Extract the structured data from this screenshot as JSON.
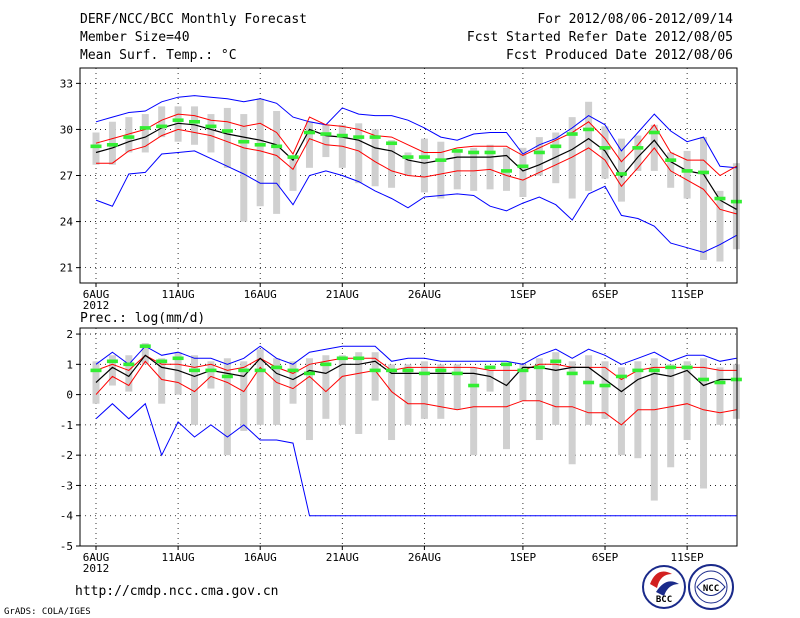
{
  "header": {
    "title": "DERF/NCC/BCC Monthly Forecast",
    "member_size": "Member Size=40",
    "variable_top": "Mean Surf. Temp.: °C",
    "period": "For 2012/08/06-2012/09/14",
    "started": "Fcst Started Refer Date 2012/08/05",
    "produced": "Fcst Produced Date 2012/08/06"
  },
  "footer": {
    "url": "http://cmdp.ncc.cma.gov.cn",
    "grads": "GrADS: COLA/IGES",
    "logo_bcc": "BCC",
    "logo_ncc": "NCC"
  },
  "colors": {
    "envelope": "#0000ff",
    "spread": "#ff0000",
    "mean": "#000000",
    "median": "#33ee33",
    "box": "#d0d0d0"
  },
  "chart_data": [
    {
      "type": "box-plume",
      "title": "Mean Surf. Temp.: °C",
      "days": 40,
      "ylim": [
        20,
        34
      ],
      "yticks": [
        21,
        24,
        27,
        30,
        33
      ],
      "xticks": [
        {
          "day": 1,
          "label": "6AUG",
          "sub": "2012"
        },
        {
          "day": 6,
          "label": "11AUG"
        },
        {
          "day": 11,
          "label": "16AUG"
        },
        {
          "day": 16,
          "label": "21AUG"
        },
        {
          "day": 21,
          "label": "26AUG"
        },
        {
          "day": 27,
          "label": "1SEP"
        },
        {
          "day": 32,
          "label": "6SEP"
        },
        {
          "day": 37,
          "label": "11SEP"
        }
      ],
      "series": [
        {
          "name": "max",
          "values": [
            30.5,
            30.8,
            31.1,
            31.2,
            31.8,
            32.1,
            32.2,
            32.1,
            32.0,
            31.8,
            32.0,
            31.7,
            30.8,
            30.5,
            30.3,
            31.4,
            31.0,
            30.9,
            30.9,
            30.6,
            30.1,
            29.5,
            29.3,
            29.7,
            29.8,
            29.8,
            28.4,
            29.0,
            29.4,
            30.1,
            30.9,
            30.3,
            28.6,
            29.8,
            31.0,
            29.9,
            29.2,
            29.5,
            27.6,
            27.5
          ]
        },
        {
          "name": "spread_high",
          "values": [
            29.1,
            29.4,
            29.7,
            30.0,
            30.6,
            31.0,
            30.9,
            30.6,
            30.5,
            30.2,
            30.4,
            29.8,
            28.4,
            30.8,
            30.3,
            30.2,
            30.0,
            29.6,
            29.5,
            29.0,
            28.5,
            28.5,
            28.8,
            28.9,
            28.9,
            28.9,
            28.3,
            28.8,
            29.3,
            29.8,
            30.5,
            29.4,
            27.9,
            29.0,
            30.3,
            28.5,
            28.0,
            28.0,
            27.0,
            27.6
          ]
        },
        {
          "name": "mean",
          "values": [
            28.5,
            28.8,
            29.2,
            29.5,
            30.1,
            30.4,
            30.3,
            30.0,
            29.7,
            29.5,
            29.3,
            29.0,
            28.0,
            30.0,
            29.6,
            29.5,
            29.3,
            28.8,
            28.6,
            28.0,
            27.8,
            28.0,
            28.2,
            28.2,
            28.2,
            28.3,
            27.3,
            27.7,
            28.2,
            28.7,
            29.4,
            28.6,
            26.9,
            28.2,
            29.3,
            27.9,
            27.3,
            27.1,
            25.4,
            24.8
          ]
        },
        {
          "name": "spread_low",
          "values": [
            27.8,
            27.8,
            28.6,
            28.9,
            29.6,
            30.0,
            29.8,
            29.6,
            29.2,
            28.8,
            28.6,
            28.3,
            27.4,
            29.4,
            29.0,
            28.9,
            28.6,
            27.9,
            27.3,
            27.0,
            26.9,
            27.1,
            27.3,
            27.3,
            27.4,
            27.0,
            26.7,
            27.2,
            27.7,
            28.2,
            28.8,
            28.0,
            26.3,
            27.5,
            28.8,
            27.3,
            26.7,
            26.1,
            24.8,
            24.5
          ]
        },
        {
          "name": "min",
          "values": [
            25.4,
            25.0,
            27.1,
            27.2,
            28.4,
            28.5,
            28.6,
            28.1,
            27.6,
            27.1,
            26.5,
            26.5,
            25.1,
            27.0,
            27.3,
            27.0,
            26.6,
            26.0,
            25.5,
            24.9,
            25.6,
            25.7,
            25.8,
            25.7,
            25.0,
            24.7,
            25.2,
            25.6,
            25.1,
            24.1,
            25.8,
            26.3,
            24.4,
            24.2,
            23.7,
            22.6,
            22.3,
            22.0,
            22.5,
            23.1
          ]
        },
        {
          "name": "median",
          "values": [
            28.9,
            29.0,
            29.5,
            30.1,
            30.2,
            30.6,
            30.5,
            30.2,
            29.9,
            29.2,
            29.0,
            28.9,
            28.2,
            29.8,
            29.7,
            29.6,
            29.5,
            29.5,
            29.1,
            28.2,
            28.2,
            28.0,
            28.6,
            28.5,
            28.5,
            27.3,
            27.6,
            28.5,
            28.9,
            29.7,
            30.0,
            28.8,
            27.1,
            28.8,
            29.8,
            28.0,
            27.3,
            27.2,
            25.5,
            25.3
          ]
        }
      ],
      "boxes": {
        "low": [
          27.7,
          27.7,
          28.5,
          28.5,
          29.5,
          29.2,
          29.0,
          28.5,
          27.5,
          24.0,
          25.0,
          24.5,
          26.0,
          27.5,
          28.2,
          27.5,
          26.5,
          26.3,
          26.2,
          27.0,
          25.9,
          25.5,
          26.1,
          26.0,
          26.1,
          26.0,
          25.6,
          27.0,
          26.5,
          25.5,
          26.0,
          26.8,
          25.3,
          27.3,
          27.3,
          26.2,
          25.5,
          21.5,
          21.4,
          22.2
        ],
        "high": [
          29.8,
          30.5,
          30.8,
          31.0,
          31.5,
          31.5,
          31.5,
          31.0,
          31.4,
          31.0,
          32.0,
          31.2,
          28.2,
          30.5,
          30.3,
          30.3,
          30.4,
          30.0,
          29.3,
          28.5,
          29.4,
          29.2,
          28.6,
          28.8,
          29.0,
          28.8,
          28.8,
          29.5,
          29.8,
          30.8,
          31.8,
          30.2,
          29.4,
          29.6,
          30.3,
          28.5,
          28.6,
          29.5,
          26.0,
          27.8
        ]
      }
    },
    {
      "type": "box-plume",
      "title": "Prec.: log(mm/d)",
      "days": 40,
      "ylim": [
        -5,
        2.2
      ],
      "yticks": [
        -5,
        -4,
        -3,
        -2,
        -1,
        0,
        1,
        2
      ],
      "xticks": [
        {
          "day": 1,
          "label": "6AUG",
          "sub": "2012"
        },
        {
          "day": 6,
          "label": "11AUG"
        },
        {
          "day": 11,
          "label": "16AUG"
        },
        {
          "day": 16,
          "label": "21AUG"
        },
        {
          "day": 21,
          "label": "26AUG"
        },
        {
          "day": 27,
          "label": "1SEP"
        },
        {
          "day": 32,
          "label": "6SEP"
        },
        {
          "day": 37,
          "label": "11SEP"
        }
      ],
      "series": [
        {
          "name": "max",
          "values": [
            1.0,
            1.4,
            1.0,
            1.6,
            1.3,
            1.4,
            1.2,
            1.2,
            1.0,
            1.2,
            1.6,
            1.2,
            1.0,
            1.4,
            1.5,
            1.6,
            1.6,
            1.6,
            1.1,
            1.2,
            1.2,
            1.1,
            1.1,
            1.1,
            1.1,
            1.1,
            1.0,
            1.3,
            1.5,
            1.2,
            1.5,
            1.3,
            1.0,
            1.2,
            1.4,
            1.1,
            1.3,
            1.3,
            1.1,
            1.2
          ]
        },
        {
          "name": "spread_high",
          "values": [
            0.8,
            1.0,
            0.8,
            1.3,
            1.0,
            1.0,
            0.9,
            1.0,
            0.8,
            0.9,
            1.2,
            0.9,
            0.7,
            1.0,
            1.1,
            1.2,
            1.2,
            1.2,
            0.8,
            0.9,
            0.9,
            0.9,
            0.9,
            0.9,
            0.8,
            0.8,
            0.8,
            1.0,
            1.0,
            0.9,
            0.9,
            0.9,
            0.5,
            0.8,
            0.9,
            0.9,
            0.9,
            0.9,
            0.8,
            0.8
          ]
        },
        {
          "name": "mean",
          "values": [
            0.4,
            0.9,
            0.6,
            1.3,
            0.9,
            0.8,
            0.6,
            0.8,
            0.7,
            0.6,
            1.2,
            0.7,
            0.5,
            0.8,
            0.7,
            1.0,
            1.0,
            1.1,
            0.7,
            0.7,
            0.7,
            0.7,
            0.7,
            0.7,
            0.6,
            0.3,
            0.9,
            0.9,
            0.8,
            0.9,
            0.9,
            0.5,
            0.1,
            0.5,
            0.7,
            0.6,
            0.8,
            0.3,
            0.5,
            0.5
          ]
        },
        {
          "name": "spread_low",
          "values": [
            0.0,
            0.6,
            0.3,
            1.1,
            0.5,
            0.4,
            0.1,
            0.6,
            0.4,
            0.1,
            0.9,
            0.4,
            0.2,
            0.6,
            0.1,
            0.6,
            0.7,
            0.8,
            0.1,
            -0.3,
            -0.3,
            -0.4,
            -0.5,
            -0.4,
            -0.4,
            -0.4,
            -0.2,
            -0.2,
            -0.4,
            -0.4,
            -0.6,
            -0.6,
            -1.0,
            -0.5,
            -0.5,
            -0.4,
            -0.3,
            -0.5,
            -0.6,
            -0.5
          ]
        },
        {
          "name": "min",
          "values": [
            -0.8,
            -0.3,
            -0.8,
            -0.3,
            -2.0,
            -0.9,
            -1.4,
            -1.0,
            -1.4,
            -1.0,
            -1.5,
            -1.5,
            -1.6,
            -4.0,
            -4.0,
            -4.0,
            -4.0,
            -4.0,
            -4.0,
            -4.0,
            -4.0,
            -4.0,
            -4.0,
            -4.0,
            -4.0,
            -4.0,
            -4.0,
            -4.0,
            -4.0,
            -4.0,
            -4.0,
            -4.0,
            -4.0,
            -4.0,
            -4.0,
            -4.0,
            -4.0,
            -4.0,
            -4.0,
            -4.0
          ]
        },
        {
          "name": "median",
          "values": [
            0.8,
            1.1,
            1.0,
            1.6,
            1.1,
            1.2,
            0.8,
            0.8,
            0.6,
            0.8,
            0.8,
            0.9,
            0.8,
            0.7,
            1.0,
            1.2,
            1.2,
            0.8,
            0.8,
            0.8,
            0.7,
            0.8,
            0.7,
            0.3,
            0.9,
            1.0,
            0.8,
            0.9,
            1.1,
            0.7,
            0.4,
            0.3,
            0.6,
            0.8,
            0.8,
            0.9,
            0.9,
            0.5,
            0.4,
            0.5
          ]
        }
      ],
      "boxes": {
        "low": [
          -0.3,
          0.3,
          0.1,
          1.0,
          -0.3,
          0.0,
          -1.0,
          0.2,
          -2.0,
          -1.2,
          -1.0,
          -1.0,
          -0.3,
          -1.5,
          -0.8,
          -1.0,
          -1.3,
          -0.2,
          -1.5,
          -1.0,
          -0.8,
          -0.8,
          -0.5,
          -2.0,
          0.1,
          -1.8,
          -0.2,
          -1.5,
          -1.0,
          -2.3,
          -1.0,
          -0.8,
          -2.0,
          -2.1,
          -3.5,
          -2.4,
          -1.5,
          -3.1,
          -1.0,
          -0.8
        ],
        "high": [
          1.1,
          1.3,
          1.3,
          1.7,
          1.2,
          1.4,
          1.3,
          1.1,
          1.2,
          1.1,
          1.5,
          1.2,
          1.1,
          1.2,
          1.3,
          1.3,
          1.4,
          1.4,
          1.0,
          1.0,
          1.1,
          1.0,
          1.0,
          0.9,
          0.8,
          1.0,
          1.0,
          1.2,
          1.4,
          1.1,
          1.3,
          1.1,
          0.9,
          1.1,
          1.2,
          1.0,
          1.1,
          1.2,
          0.9,
          1.0
        ]
      }
    }
  ]
}
